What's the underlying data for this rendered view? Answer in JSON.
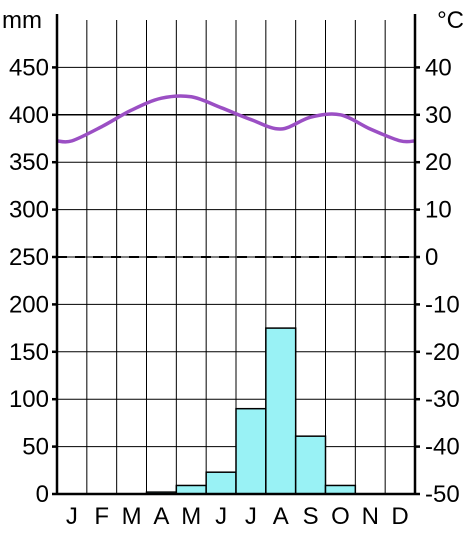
{
  "chart_data": {
    "type": "bar+line",
    "title": "",
    "categories": [
      "J",
      "F",
      "M",
      "A",
      "M",
      "J",
      "J",
      "A",
      "S",
      "O",
      "N",
      "D"
    ],
    "left_axis": {
      "unit": "mm",
      "range": [
        0,
        500
      ],
      "ticks": [
        "0",
        "50",
        "100",
        "150",
        "200",
        "250",
        "300",
        "350",
        "400",
        "450"
      ]
    },
    "right_axis": {
      "unit": "°C",
      "range": [
        -50,
        50
      ],
      "ticks": [
        "-50",
        "-40",
        "-30",
        "-20",
        "-10",
        "0",
        "10",
        "20",
        "30",
        "40"
      ]
    },
    "series": [
      {
        "type": "bar",
        "axis": "left",
        "values": [
          0,
          0,
          0,
          2,
          9,
          23,
          90,
          175,
          61,
          9,
          0,
          0
        ],
        "color": "#99f2f5"
      },
      {
        "type": "line",
        "axis": "right",
        "values": [
          24.5,
          27.5,
          31,
          33.5,
          33.8,
          31.5,
          29,
          27,
          29.5,
          30,
          27,
          24.5
        ],
        "color": "#9b4fc4"
      }
    ],
    "grid": true
  }
}
